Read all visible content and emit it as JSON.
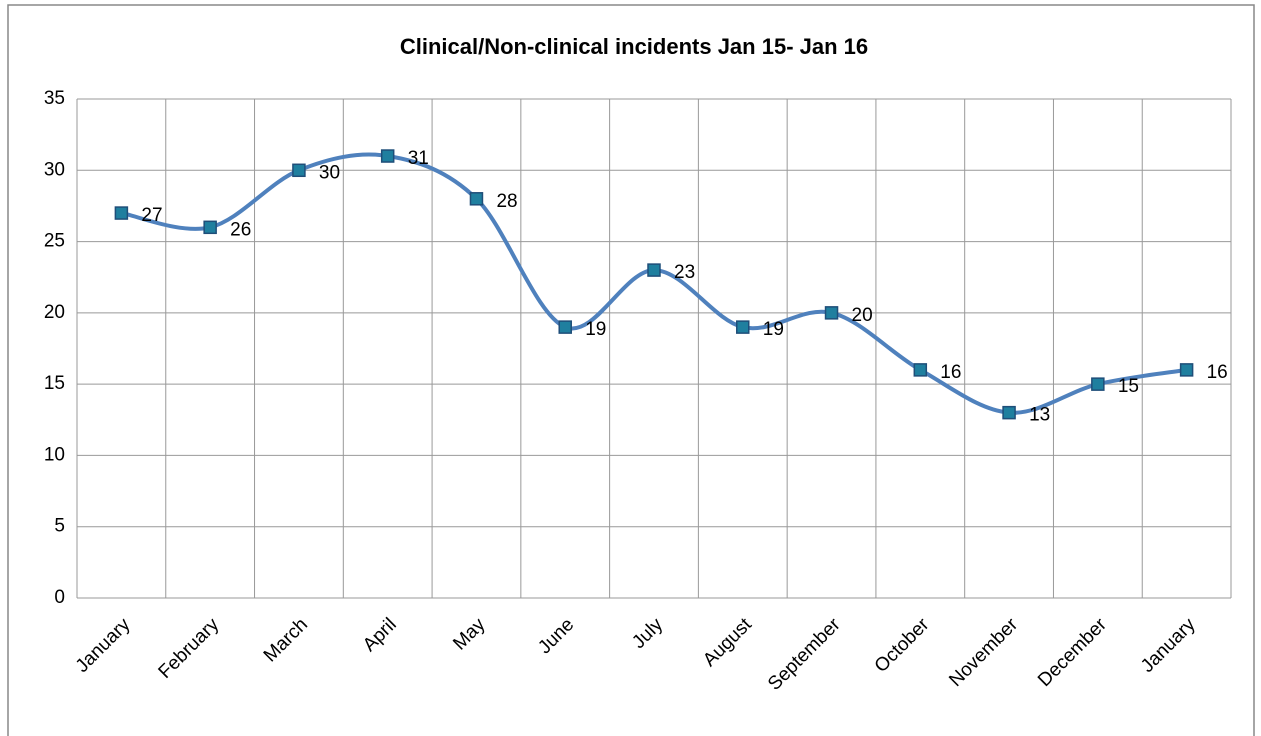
{
  "chart_data": {
    "type": "line",
    "title": "Clinical/Non-clinical  incidents Jan 15- Jan 16",
    "categories": [
      "January",
      "February",
      "March",
      "April",
      "May",
      "June",
      "July",
      "August",
      "September",
      "October",
      "November",
      "December",
      "January"
    ],
    "values": [
      27,
      26,
      30,
      31,
      28,
      19,
      23,
      19,
      20,
      16,
      13,
      15,
      16
    ],
    "color": "#4f81bd",
    "marker_color": "#1f7f9f",
    "smooth": true,
    "ylim": [
      0,
      35
    ],
    "yticks": [
      0,
      5,
      10,
      15,
      20,
      25,
      30,
      35
    ],
    "grid": true
  }
}
